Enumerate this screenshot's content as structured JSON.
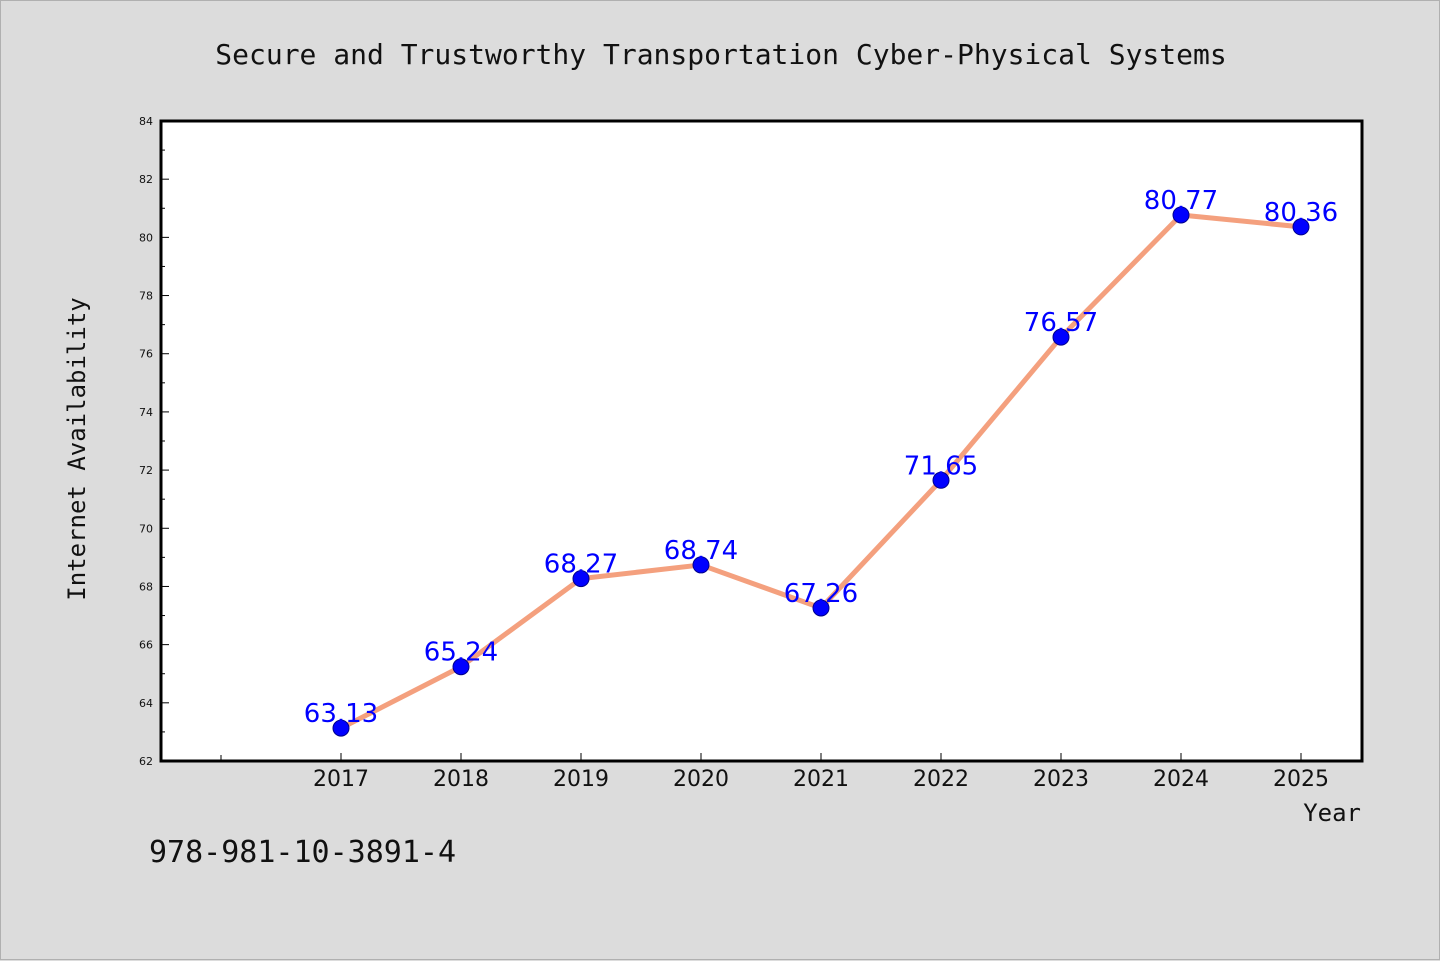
{
  "footer_code": "978-981-10-3891-4",
  "chart_data": {
    "type": "line",
    "title": "Secure and Trustworthy Transportation Cyber-Physical Systems",
    "xlabel": "Year",
    "ylabel": "Internet Availability",
    "categories": [
      "2017",
      "2018",
      "2019",
      "2020",
      "2021",
      "2022",
      "2023",
      "2024",
      "2025"
    ],
    "values": [
      63.13,
      65.24,
      68.27,
      68.74,
      67.26,
      71.65,
      76.57,
      80.77,
      80.36
    ],
    "data_labels": [
      "63.13",
      "65.24",
      "68.27",
      "68.74",
      "67.26",
      "71.65",
      "76.57",
      "80.77",
      "80.36"
    ],
    "ylim": [
      62,
      84
    ],
    "yticks": [
      62,
      64,
      66,
      68,
      70,
      72,
      74,
      76,
      78,
      80,
      82,
      84
    ],
    "grid": false,
    "legend": "none",
    "line_color": "#f4a07e",
    "marker_color": "#0000ff",
    "label_color": "#0000ff"
  }
}
